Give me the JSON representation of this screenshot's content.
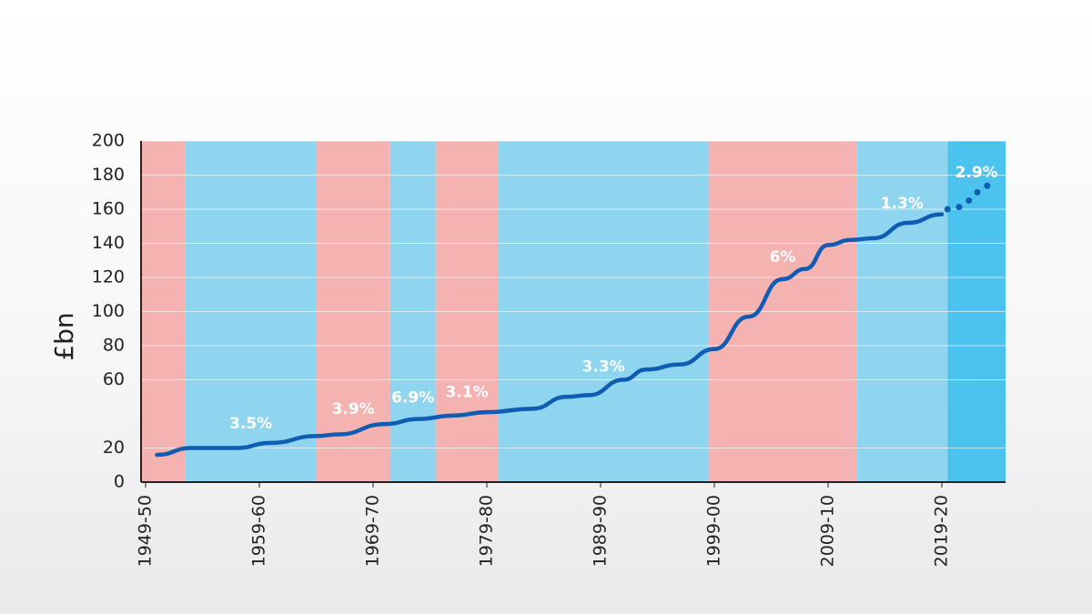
{
  "chart_data": {
    "type": "line",
    "y_label": "£bn",
    "xlim": [
      1948.6,
      2024.6
    ],
    "ylim": [
      0,
      200
    ],
    "yticks": [
      0,
      20,
      60,
      80,
      100,
      120,
      140,
      160,
      180,
      200
    ],
    "xticks": [
      {
        "value": 1949,
        "label": "1949-50"
      },
      {
        "value": 1959,
        "label": "1959-60"
      },
      {
        "value": 1969,
        "label": "1969-70"
      },
      {
        "value": 1979,
        "label": "1979-80"
      },
      {
        "value": 1989,
        "label": "1989-90"
      },
      {
        "value": 1999,
        "label": "1999-00"
      },
      {
        "value": 2009,
        "label": "2009-10"
      },
      {
        "value": 2019,
        "label": "2019-20"
      }
    ],
    "grid": true,
    "bands": [
      {
        "start": 1948.6,
        "end": 1952.5,
        "color": "#f4b2b1"
      },
      {
        "start": 1952.5,
        "end": 1964,
        "color": "#8fd5f0",
        "label": "3.5%"
      },
      {
        "start": 1964,
        "end": 1970.5,
        "color": "#f4b2b1",
        "label": "3.9%"
      },
      {
        "start": 1970.5,
        "end": 1974.5,
        "color": "#8fd5f0",
        "label": "6.9%"
      },
      {
        "start": 1974.5,
        "end": 1980,
        "color": "#f4b2b1",
        "label": "3.1%"
      },
      {
        "start": 1980,
        "end": 1998.5,
        "color": "#8fd5f0",
        "label": "3.3%"
      },
      {
        "start": 1998.5,
        "end": 2011.5,
        "color": "#f4b2b1",
        "label": "6%"
      },
      {
        "start": 2011.5,
        "end": 2019.5,
        "color": "#8fd5f0",
        "label": "1.3%"
      },
      {
        "start": 2019.5,
        "end": 2024.6,
        "color": "#4cc2ee",
        "label": "2.9%"
      }
    ],
    "series": [
      {
        "color": "#0f5cb3",
        "style": "solid",
        "x": [
          1950,
          1953,
          1957,
          1960,
          1964,
          1966,
          1970,
          1973,
          1976,
          1979,
          1983,
          1986,
          1988,
          1991,
          1993,
          1996,
          1999,
          2002,
          2005,
          2007,
          2009,
          2011,
          2013,
          2016,
          2019
        ],
        "values": [
          16,
          20,
          20,
          23,
          27,
          28,
          34,
          37,
          39,
          41,
          43,
          50,
          51,
          60,
          66,
          69,
          78,
          97,
          119,
          125,
          139,
          142,
          143,
          152,
          157
        ]
      },
      {
        "color": "#0f5cb3",
        "style": "dotted",
        "x": [
          2019.5,
          2024
        ],
        "values": [
          160,
          175
        ]
      }
    ]
  }
}
